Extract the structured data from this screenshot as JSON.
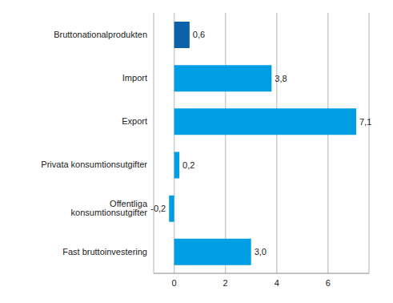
{
  "chart_data": {
    "type": "bar",
    "orientation": "horizontal",
    "categories": [
      "Bruttonationalprodukten",
      "Import",
      "Export",
      "Privata konsumtionsutgifter",
      "Offentliga konsumtionsutgifter",
      "Fast bruttoinvestering"
    ],
    "values": [
      0.6,
      3.8,
      7.1,
      0.2,
      -0.2,
      3.0
    ],
    "value_labels": [
      "0,6",
      "3,8",
      "7,1",
      "0,2",
      "-0,2",
      "3,0"
    ],
    "colors": [
      "#0b62a8",
      "#009fe3",
      "#009fe3",
      "#009fe3",
      "#009fe3",
      "#009fe3"
    ],
    "xlim": [
      -0.8,
      7.6
    ],
    "xticks": [
      0,
      2,
      4,
      6
    ],
    "grid": true,
    "data_labels": true
  }
}
